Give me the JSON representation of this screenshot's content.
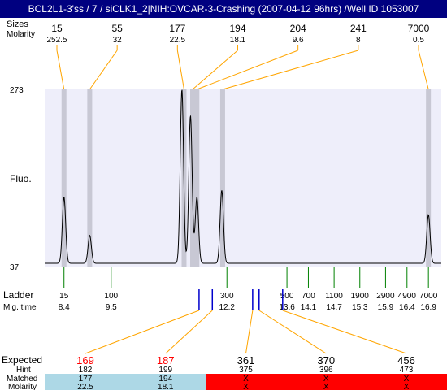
{
  "title": "BCL2L1-3'ss / 7 / siCLK1_2|NIH:OVCAR-3-Crashing (2007-04-12 96hrs) /Well ID 1053007",
  "labels": {
    "sizes": "Sizes",
    "molarity": "Molarity",
    "fluo": "Fluo.",
    "ladder": "Ladder",
    "mig_time": "Mig. time",
    "expected": "Expected",
    "hint": "Hint",
    "matched": "Matched",
    "molarity_bottom": "Molarity"
  },
  "colors": {
    "title_bg": "#000080",
    "plot_bg": "#eeeefa",
    "band": "#c8c8d4",
    "orange": "#ffa500",
    "ladder_tick": "#008000",
    "marker_blue": "#0000cc",
    "expected_red": "#ff0000",
    "matched_bg": "#add8e6",
    "unmatched_bg": "#ff0000"
  },
  "chart_data": {
    "type": "line",
    "y_axis": {
      "top": "273",
      "bottom": "37"
    },
    "top_peaks": [
      {
        "size": "15",
        "molarity": "252.5",
        "mig": 8.4
      },
      {
        "size": "55",
        "molarity": "32",
        "mig": 9.0
      },
      {
        "size": "177",
        "molarity": "22.5",
        "mig": 11.2
      },
      {
        "size": "194",
        "molarity": "18.1",
        "mig": 11.4
      },
      {
        "size": "204",
        "molarity": "9.6",
        "mig": 11.5
      },
      {
        "size": "241",
        "molarity": "8",
        "mig": 12.1
      },
      {
        "size": "7000",
        "molarity": "0.5",
        "mig": 16.9
      }
    ],
    "ladder": [
      {
        "size": "15",
        "time": "8.4",
        "t": 8.4
      },
      {
        "size": "100",
        "time": "9.5",
        "t": 9.5
      },
      {
        "size": "300",
        "time": "12.2",
        "t": 12.2
      },
      {
        "size": "500",
        "time": "13.6",
        "t": 13.6
      },
      {
        "size": "700",
        "time": "14.1",
        "t": 14.1
      },
      {
        "size": "1100",
        "time": "14.7",
        "t": 14.7
      },
      {
        "size": "1900",
        "time": "15.3",
        "t": 15.3
      },
      {
        "size": "2900",
        "time": "15.9",
        "t": 15.9
      },
      {
        "size": "4900",
        "time": "16.4",
        "t": 16.4
      },
      {
        "size": "7000",
        "time": "16.9",
        "t": 16.9
      }
    ],
    "trace_peaks": [
      {
        "mig": 8.4,
        "height": 0.38
      },
      {
        "mig": 9.0,
        "height": 0.16
      },
      {
        "mig": 11.15,
        "height": 1.0
      },
      {
        "mig": 11.35,
        "height": 0.85
      },
      {
        "mig": 11.5,
        "height": 0.38
      },
      {
        "mig": 12.08,
        "height": 0.42
      },
      {
        "mig": 16.9,
        "height": 0.28
      }
    ],
    "expected": [
      {
        "expected": "169",
        "hint": "182",
        "matched": "177",
        "molarity": "22.5",
        "found": true,
        "mig": 11.55
      },
      {
        "expected": "187",
        "hint": "199",
        "matched": "194",
        "molarity": "18.1",
        "found": true,
        "mig": 11.86
      },
      {
        "expected": "361",
        "hint": "375",
        "matched": "X",
        "molarity": "X",
        "found": false,
        "mig": 12.8
      },
      {
        "expected": "370",
        "hint": "396",
        "matched": "X",
        "molarity": "X",
        "found": false,
        "mig": 12.95
      },
      {
        "expected": "456",
        "hint": "473",
        "matched": "X",
        "molarity": "X",
        "found": false,
        "mig": 13.5
      }
    ],
    "x_range": [
      7.95,
      17.2
    ]
  }
}
